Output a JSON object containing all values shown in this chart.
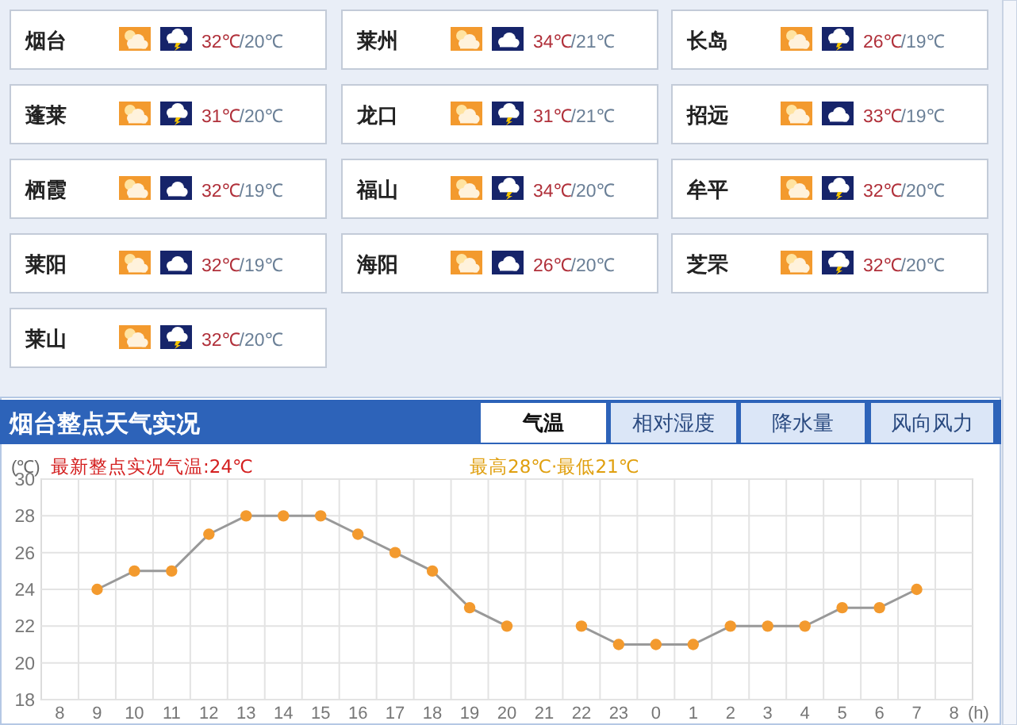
{
  "chart_data": [
    {
      "type": "other",
      "annotations": [
        "烟台",
        "32℃",
        "/20℃",
        "莱州",
        "34℃",
        "/21℃",
        "长岛",
        "26℃",
        "/19℃",
        "蓬莱",
        "31℃",
        "/20℃",
        "龙口",
        "31℃",
        "/21℃",
        "招远",
        "33℃",
        "/19℃",
        "栖霞",
        "32℃",
        "/19℃",
        "福山",
        "34℃",
        "/20℃",
        "牟平",
        "32℃",
        "/20℃",
        "莱阳",
        "32℃",
        "/19℃",
        "海阳",
        "26℃",
        "/20℃",
        "芝罘",
        "32℃",
        "/20℃",
        "莱山",
        "32℃",
        "/20℃"
      ]
    },
    {
      "type": "line",
      "title": "烟台整点天气实况",
      "subtitle": "最新整点实况气温:24℃",
      "ylabel": "(℃)",
      "xlabel": "(h)",
      "annotations": [
        "最高28℃·最低21℃",
        "气温",
        "相对湿度",
        "降水量",
        "风向风力"
      ],
      "categories": [
        "8",
        "9",
        "10",
        "11",
        "12",
        "13",
        "14",
        "15",
        "16",
        "17",
        "18",
        "19",
        "20",
        "21",
        "22",
        "23",
        "0",
        "1",
        "2",
        "3",
        "4",
        "5",
        "6",
        "7",
        "8"
      ],
      "series": [
        {
          "color": "#f39a2e",
          "values": [
            null,
            24,
            25,
            25,
            27,
            28,
            28,
            28,
            27,
            26,
            25,
            23,
            22,
            null,
            22,
            21,
            21,
            21,
            22,
            22,
            22,
            23,
            23,
            24,
            null
          ]
        }
      ],
      "ylim": [
        18,
        30
      ],
      "yticks": [
        18,
        20,
        22,
        24,
        26,
        28,
        30
      ],
      "grid": true,
      "marker": "circle",
      "line_style": "solid"
    }
  ]
}
